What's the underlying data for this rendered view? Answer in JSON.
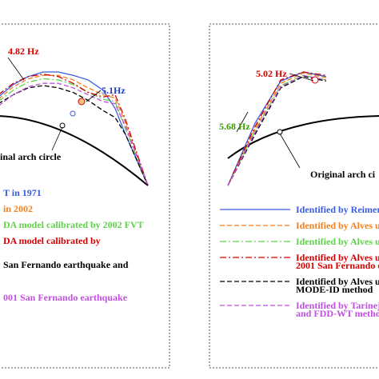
{
  "chart_data": [
    {
      "type": "line",
      "title": "",
      "panel": "left",
      "annotations": [
        {
          "text": "4.82 Hz",
          "color": "#d40000"
        },
        {
          "text": "5.1Hz",
          "color": "#1f3fbf"
        },
        {
          "text": "inal arch circle",
          "color": "#000000"
        }
      ],
      "legend": {
        "placement": "bottom-left",
        "entries": [
          {
            "text": "T in 1971",
            "color": "#3b5ce0"
          },
          {
            "text": "in 2002",
            "color": "#f08020"
          },
          {
            "text": "DA model calibrated by 2002 FVT",
            "color": "#5fd14a"
          },
          {
            "text": "DA model calibrated by",
            "color": "#d40000"
          },
          {
            "text": "",
            "color": "#d40000"
          },
          {
            "text": "San Fernando earthquake and",
            "color": "#000000"
          },
          {
            "text": "",
            "color": "#000000"
          },
          {
            "text": "001 San Fernando earthquake",
            "color": "#c050e0"
          }
        ]
      },
      "series": [
        {
          "values": [
            [
              0,
              0.78
            ],
            [
              0.1,
              0.89
            ],
            [
              0.2,
              0.96
            ],
            [
              0.3,
              1.0
            ],
            [
              0.4,
              1.0
            ],
            [
              0.5,
              0.97
            ],
            [
              0.6,
              0.93
            ],
            [
              0.7,
              0.84
            ],
            [
              0.78,
              0.68
            ],
            [
              0.85,
              0.45
            ],
            [
              1.0,
              0.0
            ]
          ],
          "color": "#3b5ce0",
          "style": "solid"
        },
        {
          "values": [
            [
              0,
              0.76
            ],
            [
              0.1,
              0.87
            ],
            [
              0.2,
              0.94
            ],
            [
              0.3,
              0.97
            ],
            [
              0.4,
              0.97
            ],
            [
              0.5,
              0.93
            ],
            [
              0.6,
              0.86
            ],
            [
              0.7,
              0.8
            ],
            [
              0.78,
              0.77
            ],
            [
              0.85,
              0.55
            ],
            [
              1.0,
              0.0
            ]
          ],
          "color": "#f08020",
          "style": "dash"
        },
        {
          "values": [
            [
              0,
              0.74
            ],
            [
              0.1,
              0.84
            ],
            [
              0.2,
              0.91
            ],
            [
              0.3,
              0.94
            ],
            [
              0.4,
              0.93
            ],
            [
              0.5,
              0.89
            ],
            [
              0.6,
              0.82
            ],
            [
              0.7,
              0.76
            ],
            [
              0.78,
              0.74
            ],
            [
              0.85,
              0.5
            ],
            [
              1.0,
              0.0
            ]
          ],
          "color": "#5fd14a",
          "style": "dashdot"
        },
        {
          "values": [
            [
              0,
              0.8
            ],
            [
              0.1,
              0.9
            ],
            [
              0.2,
              0.96
            ],
            [
              0.3,
              0.98
            ],
            [
              0.4,
              0.96
            ],
            [
              0.5,
              0.9
            ],
            [
              0.6,
              0.82
            ],
            [
              0.7,
              0.78
            ],
            [
              0.78,
              0.8
            ],
            [
              0.85,
              0.58
            ],
            [
              1.0,
              0.0
            ]
          ],
          "color": "#d40000",
          "style": "dashdot"
        },
        {
          "values": [
            [
              0,
              0.72
            ],
            [
              0.1,
              0.8
            ],
            [
              0.2,
              0.86
            ],
            [
              0.3,
              0.88
            ],
            [
              0.4,
              0.86
            ],
            [
              0.5,
              0.82
            ],
            [
              0.6,
              0.75
            ],
            [
              0.7,
              0.66
            ],
            [
              0.78,
              0.6
            ],
            [
              0.85,
              0.45
            ],
            [
              1.0,
              0.0
            ]
          ],
          "color": "#000000",
          "style": "dash"
        },
        {
          "values": [
            [
              0,
              0.7
            ],
            [
              0.1,
              0.8
            ],
            [
              0.2,
              0.87
            ],
            [
              0.3,
              0.9
            ],
            [
              0.4,
              0.9
            ],
            [
              0.5,
              0.86
            ],
            [
              0.6,
              0.8
            ],
            [
              0.7,
              0.74
            ],
            [
              0.78,
              0.72
            ],
            [
              0.85,
              0.52
            ],
            [
              1.0,
              0.0
            ]
          ],
          "color": "#c050e0",
          "style": "dash"
        }
      ]
    },
    {
      "type": "line",
      "title": "",
      "panel": "right",
      "annotations": [
        {
          "text": "5.02 Hz",
          "color": "#d40000"
        },
        {
          "text": "5.68 Hz",
          "color": "#3a9a00"
        },
        {
          "text": "Original arch ci",
          "color": "#000000"
        }
      ],
      "legend": {
        "placement": "bottom-right",
        "entries": [
          {
            "text": "Identified by Reimer",
            "color": "#3b5ce0"
          },
          {
            "text": "Identified by Alves u",
            "color": "#f08020"
          },
          {
            "text": "Identified by Alves u",
            "color": "#5fd14a"
          },
          {
            "text": "Identified by Alves u",
            "color": "#d40000"
          },
          {
            "text": "2001 San Fernando e",
            "color": "#d40000"
          },
          {
            "text": "Identified by Alves u",
            "color": "#000000"
          },
          {
            "text": "MODE-ID method",
            "color": "#000000"
          },
          {
            "text": "Identified by Tarinej",
            "color": "#c050e0"
          },
          {
            "text": "and FDD-WT metho",
            "color": "#c050e0"
          }
        ]
      },
      "series": [
        {
          "values": [
            [
              0,
              0.0
            ],
            [
              0.18,
              0.55
            ],
            [
              0.35,
              0.92
            ],
            [
              0.5,
              1.0
            ],
            [
              0.65,
              0.96
            ]
          ],
          "color": "#3b5ce0",
          "style": "solid"
        },
        {
          "values": [
            [
              0,
              0.0
            ],
            [
              0.18,
              0.5
            ],
            [
              0.35,
              0.9
            ],
            [
              0.5,
              0.99
            ],
            [
              0.65,
              0.95
            ]
          ],
          "color": "#f08020",
          "style": "dash"
        },
        {
          "values": [
            [
              0,
              0.0
            ],
            [
              0.18,
              0.48
            ],
            [
              0.35,
              0.88
            ],
            [
              0.5,
              0.97
            ],
            [
              0.65,
              0.93
            ]
          ],
          "color": "#5fd14a",
          "style": "dashdot"
        },
        {
          "values": [
            [
              0,
              0.0
            ],
            [
              0.18,
              0.52
            ],
            [
              0.35,
              0.93
            ],
            [
              0.5,
              1.0
            ],
            [
              0.65,
              0.97
            ]
          ],
          "color": "#d40000",
          "style": "dashdot"
        },
        {
          "values": [
            [
              0,
              0.0
            ],
            [
              0.18,
              0.45
            ],
            [
              0.35,
              0.86
            ],
            [
              0.5,
              0.96
            ],
            [
              0.65,
              0.92
            ]
          ],
          "color": "#000000",
          "style": "dash"
        },
        {
          "values": [
            [
              0,
              0.0
            ],
            [
              0.18,
              0.47
            ],
            [
              0.35,
              0.87
            ],
            [
              0.5,
              0.97
            ],
            [
              0.65,
              0.93
            ]
          ],
          "color": "#c050e0",
          "style": "dash"
        }
      ]
    }
  ]
}
